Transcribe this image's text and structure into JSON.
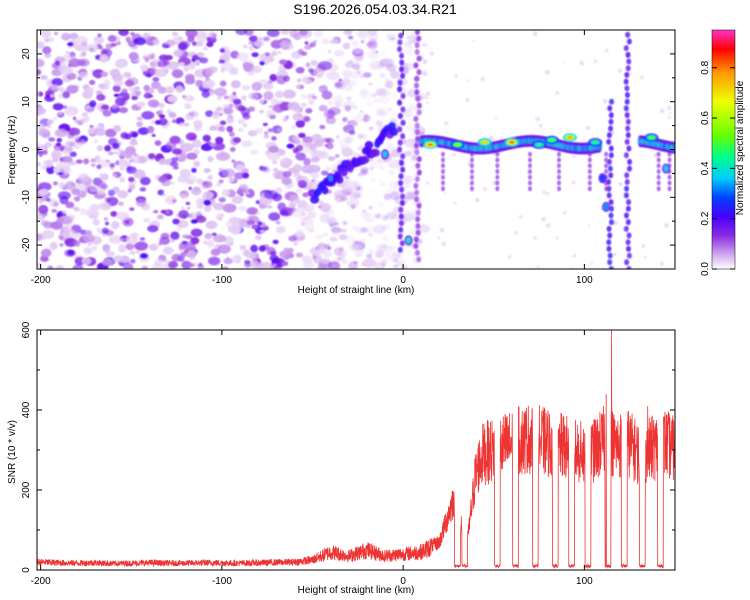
{
  "title": "S196.2026.054.03.34.R21",
  "chart_data": [
    {
      "type": "heatmap",
      "xlabel": "Height of straight line (km)",
      "ylabel": "Frequency (Hz)",
      "xlim": [
        -202,
        150
      ],
      "ylim": [
        -25,
        25
      ],
      "xticks": [
        -200,
        -100,
        0,
        100
      ],
      "yticks": [
        -20,
        -10,
        0,
        10,
        20
      ],
      "colorbar": {
        "label": "Normalized spectral amplitude",
        "range": [
          0.0,
          0.95
        ],
        "ticks": [
          0.0,
          0.2,
          0.4,
          0.6,
          0.8
        ],
        "colors": [
          "#ffffff",
          "#d9b8f0",
          "#8a2be2",
          "#4400ff",
          "#0044ff",
          "#00ccff",
          "#00ff88",
          "#66ff00",
          "#eeff00",
          "#ff9900",
          "#ff0000",
          "#ff33cc"
        ]
      },
      "features": {
        "noise_region_km": [
          -202,
          10
        ],
        "signal_band_km": [
          10,
          150
        ],
        "signal_band_freq_hz": 1,
        "hot_spots": [
          {
            "x": 15,
            "y": 1,
            "v": 0.85
          },
          {
            "x": 30,
            "y": 1,
            "v": 0.6
          },
          {
            "x": 45,
            "y": 1.5,
            "v": 0.75
          },
          {
            "x": 60,
            "y": 1.5,
            "v": 0.85
          },
          {
            "x": 75,
            "y": 1,
            "v": 0.5
          },
          {
            "x": 82,
            "y": 2,
            "v": 0.55
          },
          {
            "x": 92,
            "y": 2.5,
            "v": 0.8
          },
          {
            "x": 106,
            "y": 1.5,
            "v": 0.5
          },
          {
            "x": 137,
            "y": 2.5,
            "v": 0.55
          }
        ]
      }
    },
    {
      "type": "line",
      "xlabel": "Height of straight line (km)",
      "ylabel": "SNR (10 * v/v)",
      "xlim": [
        -202,
        150
      ],
      "ylim": [
        0,
        600
      ],
      "xticks": [
        -200,
        -100,
        0,
        100
      ],
      "yticks": [
        0,
        200,
        400,
        600
      ],
      "color": "#ee3333",
      "series": [
        {
          "name": "SNR",
          "x": [
            -202,
            -190,
            -180,
            -170,
            -160,
            -150,
            -140,
            -130,
            -120,
            -110,
            -100,
            -90,
            -80,
            -70,
            -60,
            -50,
            -40,
            -30,
            -20,
            -10,
            0,
            10,
            20,
            28,
            32,
            36,
            40,
            44,
            50,
            56,
            62,
            70,
            78,
            86,
            94,
            100,
            106,
            112,
            118,
            124,
            130,
            136,
            140,
            144,
            150
          ],
          "values": [
            20,
            18,
            17,
            18,
            16,
            17,
            18,
            17,
            17,
            18,
            18,
            17,
            18,
            19,
            20,
            25,
            45,
            35,
            50,
            35,
            40,
            45,
            70,
            180,
            110,
            90,
            240,
            290,
            300,
            310,
            320,
            330,
            320,
            310,
            300,
            290,
            300,
            330,
            310,
            320,
            290,
            300,
            310,
            320,
            300
          ]
        }
      ],
      "peaks": [
        {
          "x": 115,
          "y": 600
        },
        {
          "x": 112,
          "y": 440
        },
        {
          "x": 135,
          "y": 410
        }
      ],
      "dropouts_km": [
        30,
        34,
        52,
        62,
        73,
        84,
        93,
        102,
        113,
        122,
        132,
        142
      ]
    }
  ]
}
